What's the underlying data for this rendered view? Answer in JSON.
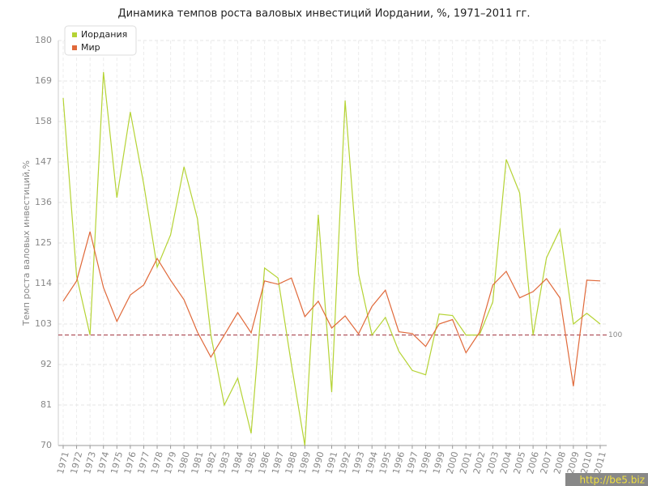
{
  "chart_data": {
    "type": "line",
    "title": "Динамика темпов роста валовых инвестиций Иордании, %, 1971–2011 гг.",
    "y_label": "Темп роста валовых инвестиций,%",
    "categories": [
      "1971",
      "1972",
      "1973",
      "1974",
      "1975",
      "1976",
      "1977",
      "1978",
      "1979",
      "1980",
      "1981",
      "1982",
      "1983",
      "1984",
      "1985",
      "1986",
      "1987",
      "1988",
      "1989",
      "1990",
      "1991",
      "1992",
      "1993",
      "1994",
      "1995",
      "1996",
      "1997",
      "1998",
      "1999",
      "2000",
      "2001",
      "2002",
      "2003",
      "2004",
      "2005",
      "2006",
      "2007",
      "2008",
      "2009",
      "2010",
      "2011"
    ],
    "series": [
      {
        "name": "Иордания",
        "color": "#b5d334",
        "values": [
          164.4,
          116,
          100,
          171.4,
          137.3,
          160.6,
          141,
          118.4,
          127.2,
          145.7,
          131.6,
          100,
          81,
          88.3,
          73.3,
          118.2,
          115.5,
          92,
          70,
          132.7,
          84.5,
          163.7,
          116.6,
          100,
          104.8,
          95.6,
          90.4,
          89.2,
          105.7,
          105.3,
          100,
          100,
          109,
          147.7,
          138.6,
          100,
          121,
          128.7,
          103,
          105.9,
          103
        ]
      },
      {
        "name": "Мир",
        "color": "#e0693a",
        "values": [
          109.2,
          114.7,
          128.1,
          112.9,
          103.7,
          110.9,
          113.6,
          120.8,
          114.9,
          109.6,
          100.8,
          94,
          100,
          106.1,
          100.6,
          114.7,
          113.8,
          115.5,
          105,
          109.2,
          101.9,
          105.2,
          100.3,
          107.8,
          112.2,
          100.9,
          100.4,
          96.9,
          103,
          104.2,
          95.2,
          100.7,
          113.6,
          117.3,
          110.1,
          111.8,
          115.3,
          110.1,
          86.1,
          114.9,
          114.7
        ]
      }
    ],
    "reference_line": 100,
    "reference_color": "#a0303c",
    "ylim": [
      70,
      180
    ],
    "yticks": [
      70,
      81,
      92,
      103,
      114,
      125,
      136,
      147,
      158,
      169,
      180
    ],
    "grid": true,
    "legend": "top-left",
    "watermark": "http://be5.biz"
  }
}
